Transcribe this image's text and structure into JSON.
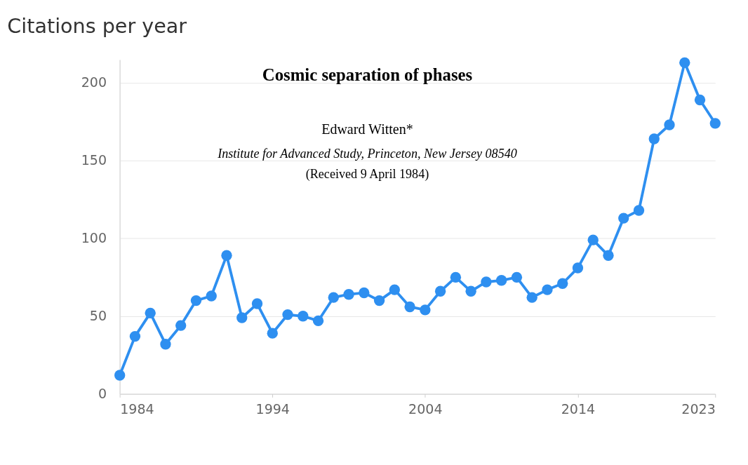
{
  "chart_data": {
    "type": "line",
    "title": "Citations per year",
    "annotations": [
      "Cosmic separation of phases",
      "Edward Witten*",
      "Institute for Advanced Study, Princeton, New Jersey 08540",
      "(Received 9 April 1984)"
    ],
    "x": [
      1984,
      1985,
      1986,
      1987,
      1988,
      1989,
      1990,
      1991,
      1992,
      1993,
      1994,
      1995,
      1996,
      1997,
      1998,
      1999,
      2000,
      2001,
      2002,
      2003,
      2004,
      2005,
      2006,
      2007,
      2008,
      2009,
      2010,
      2011,
      2012,
      2013,
      2014,
      2015,
      2016,
      2017,
      2018,
      2019,
      2020,
      2021,
      2022,
      2023
    ],
    "series": [
      {
        "color": "#2e8ff0",
        "marker": "circle",
        "line_style": "solid",
        "values": [
          12,
          37,
          52,
          32,
          44,
          60,
          63,
          89,
          49,
          58,
          39,
          51,
          50,
          47,
          62,
          64,
          65,
          60,
          67,
          56,
          54,
          66,
          75,
          66,
          72,
          73,
          75,
          62,
          67,
          71,
          81,
          99,
          89,
          113,
          118,
          164,
          173,
          213,
          189,
          174
        ]
      }
    ],
    "xlim": [
      1984,
      2023
    ],
    "xticks": [
      1984,
      1994,
      2004,
      2014,
      2023
    ],
    "ylim": [
      0,
      215
    ],
    "yticks": [
      0,
      50,
      100,
      150,
      200
    ],
    "grid": "y"
  }
}
